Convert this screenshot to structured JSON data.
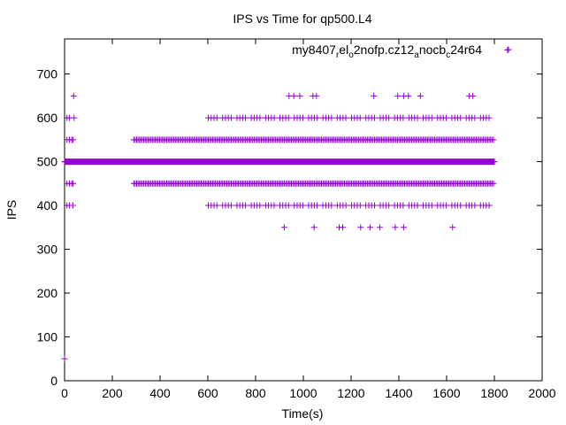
{
  "chart_data": {
    "type": "scatter",
    "title": "IPS vs Time for qp500.L4",
    "xlabel": "Time(s)",
    "ylabel": "IPS",
    "xlim": [
      0,
      2000
    ],
    "ylim": [
      0,
      780
    ],
    "xticks": [
      0,
      200,
      400,
      600,
      800,
      1000,
      1200,
      1400,
      1600,
      1800,
      2000
    ],
    "yticks": [
      0,
      100,
      200,
      300,
      400,
      500,
      600,
      700
    ],
    "grid": false,
    "legend_position": "top-right",
    "marker": "+",
    "series": [
      {
        "name_parts": [
          {
            "t": "my8407",
            "sub": false
          },
          {
            "t": "r",
            "sub": true
          },
          {
            "t": "el",
            "sub": false
          },
          {
            "t": "o",
            "sub": true
          },
          {
            "t": "2nofp.cz12",
            "sub": false
          },
          {
            "t": "a",
            "sub": true
          },
          {
            "t": "n",
            "sub": false
          },
          {
            "t": "ocb",
            "sub": false
          },
          {
            "t": "c",
            "sub": true
          },
          {
            "t": "24r64",
            "sub": false
          }
        ],
        "color": "#9400d3",
        "dense": [
          {
            "y": 500,
            "x_range": [
              0,
              1800
            ],
            "step": 2
          },
          {
            "y": 550,
            "x_range": [
              290,
              1800
            ],
            "step": 6
          },
          {
            "y": 450,
            "x_range": [
              290,
              1800
            ],
            "step": 6
          },
          {
            "y": 600,
            "x_range": [
              590,
              1790
            ],
            "step": 12
          },
          {
            "y": 400,
            "x_range": [
              590,
              1800
            ],
            "step": 12
          }
        ],
        "points": [
          [
            0,
            50
          ],
          [
            10,
            550
          ],
          [
            20,
            550
          ],
          [
            30,
            550
          ],
          [
            35,
            550
          ],
          [
            10,
            450
          ],
          [
            20,
            450
          ],
          [
            30,
            450
          ],
          [
            35,
            450
          ],
          [
            10,
            600
          ],
          [
            20,
            600
          ],
          [
            40,
            600
          ],
          [
            10,
            400
          ],
          [
            20,
            400
          ],
          [
            35,
            400
          ],
          [
            38,
            650
          ],
          [
            940,
            650
          ],
          [
            960,
            650
          ],
          [
            985,
            650
          ],
          [
            1040,
            650
          ],
          [
            1055,
            650
          ],
          [
            1295,
            650
          ],
          [
            1395,
            650
          ],
          [
            1420,
            650
          ],
          [
            1440,
            650
          ],
          [
            1490,
            650
          ],
          [
            1695,
            650
          ],
          [
            1710,
            650
          ],
          [
            920,
            350
          ],
          [
            1045,
            350
          ],
          [
            1150,
            350
          ],
          [
            1165,
            350
          ],
          [
            1240,
            350
          ],
          [
            1280,
            350
          ],
          [
            1320,
            350
          ],
          [
            1385,
            350
          ],
          [
            1420,
            350
          ],
          [
            1625,
            350
          ],
          [
            1855,
            755
          ]
        ]
      }
    ]
  }
}
